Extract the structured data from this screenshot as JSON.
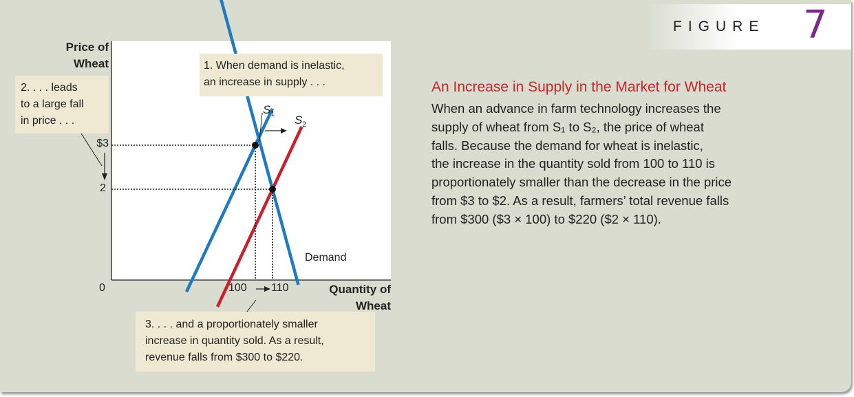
{
  "figure": {
    "label": "FIGURE",
    "number": "7"
  },
  "caption": {
    "title": "An Increase in Supply in the Market for Wheat",
    "lines": [
      "When an advance in farm technology increases the",
      "supply of wheat from S₁ to S₂, the price of wheat",
      "falls. Because the demand for wheat is inelastic,",
      "the increase in the quantity sold from 100 to 110 is",
      "proportionately smaller than the decrease in the price",
      "from $3 to $2. As a result, farmers’ total revenue falls",
      "from $300 ($3 × 100) to $220 ($2 × 110)."
    ]
  },
  "callouts": {
    "one": [
      "1. When demand is inelastic,",
      "an increase in supply . . ."
    ],
    "two": [
      "2. . . . leads",
      "to a large fall",
      "in price . . ."
    ],
    "three": [
      "3. . . . and a proportionately smaller",
      "increase in quantity sold. As a result,",
      "revenue falls from $300 to $220."
    ]
  },
  "chart_data": {
    "type": "line",
    "title": "",
    "ylabel_lines": [
      "Price of",
      "Wheat"
    ],
    "xlabel_lines": [
      "Quantity of",
      "Wheat"
    ],
    "ticks": {
      "origin": "0",
      "y": [
        "$3",
        "2"
      ],
      "x": [
        "100",
        "110"
      ]
    },
    "equilibria": [
      {
        "label": "S1 equilibrium",
        "quantity": 100,
        "price": 3
      },
      {
        "label": "S2 equilibrium",
        "quantity": 110,
        "price": 2
      }
    ],
    "series": [
      {
        "name": "Demand",
        "color": "#1f7bbf",
        "points": [
          [
            76,
            6.9
          ],
          [
            110,
            2
          ],
          [
            125,
            -0.17
          ]
        ]
      },
      {
        "name": "S₁",
        "color": "#1f7bbf",
        "points": [
          [
            60,
            -0.33
          ],
          [
            100,
            3
          ],
          [
            110,
            3.83
          ]
        ]
      },
      {
        "name": "S₂",
        "color": "#c8202f",
        "points": [
          [
            78,
            -0.67
          ],
          [
            110,
            2
          ],
          [
            127,
            3.42
          ]
        ]
      }
    ],
    "grid": false,
    "colors": {
      "demand": "#1f7bbf",
      "supply1": "#1f7bbf",
      "supply2": "#c8202f"
    }
  }
}
